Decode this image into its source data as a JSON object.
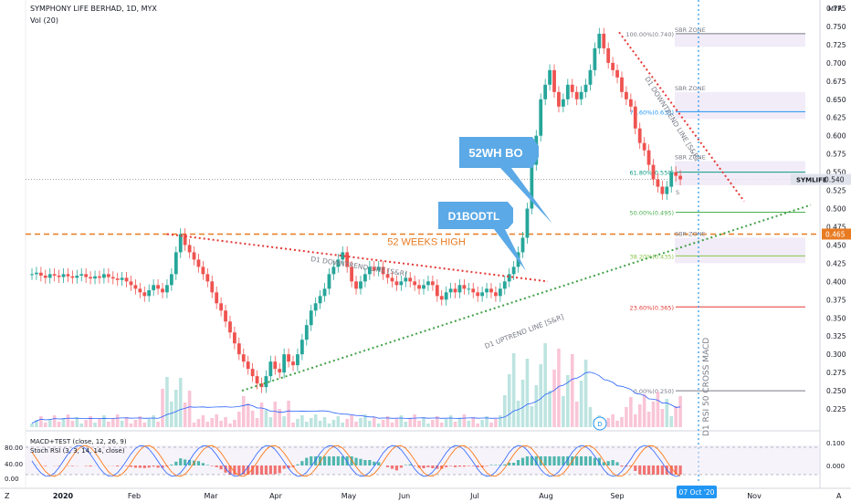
{
  "header": {
    "symbol_line": "SYMPHONY LIFE BERHAD, 1D, MYX",
    "vol_label": "Vol (20)",
    "currency": "MYR",
    "osc1": "MACD+TEST (close, 12, 26, 9)",
    "osc2": "Stoch RSI (3, 3, 14, 14, close)"
  },
  "colors": {
    "up": "#26a69a",
    "down": "#ef5350",
    "callout": "#5ba9e6",
    "orange": "#e87b22",
    "macd": "#2962ff",
    "signal": "#ff6d00"
  },
  "chart_data": {
    "type": "candlestick",
    "ylim": [
      0.2,
      0.78
    ],
    "yticks": [
      "0.225",
      "0.250",
      "0.275",
      "0.300",
      "0.325",
      "0.350",
      "0.375",
      "0.400",
      "0.425",
      "0.450",
      "0.475",
      "0.500",
      "0.525",
      "0.550",
      "0.575",
      "0.600",
      "0.625",
      "0.650",
      "0.675",
      "0.700",
      "0.725",
      "0.750",
      "0.775"
    ],
    "x_labels": [
      "2020",
      "Feb",
      "Mar",
      "Apr",
      "May",
      "Jun",
      "Jul",
      "Aug",
      "Sep",
      "Nov"
    ],
    "x_marker_label": "07 Oct '20",
    "last_price": {
      "label": "SYMLIFE",
      "value": "0.540"
    },
    "high_52w": {
      "label": "52 WEEKS HIGH",
      "value": "0.465"
    },
    "closes": [
      0.41,
      0.412,
      0.408,
      0.405,
      0.41,
      0.408,
      0.406,
      0.41,
      0.407,
      0.405,
      0.408,
      0.41,
      0.406,
      0.404,
      0.407,
      0.405,
      0.41,
      0.406,
      0.404,
      0.402,
      0.405,
      0.4,
      0.395,
      0.39,
      0.385,
      0.38,
      0.388,
      0.395,
      0.39,
      0.385,
      0.395,
      0.41,
      0.44,
      0.465,
      0.45,
      0.44,
      0.43,
      0.42,
      0.41,
      0.4,
      0.385,
      0.37,
      0.36,
      0.345,
      0.33,
      0.315,
      0.3,
      0.29,
      0.28,
      0.27,
      0.26,
      0.255,
      0.27,
      0.29,
      0.28,
      0.275,
      0.3,
      0.29,
      0.285,
      0.3,
      0.32,
      0.34,
      0.36,
      0.37,
      0.38,
      0.39,
      0.41,
      0.42,
      0.43,
      0.44,
      0.42,
      0.4,
      0.39,
      0.4,
      0.41,
      0.42,
      0.415,
      0.42,
      0.41,
      0.405,
      0.4,
      0.395,
      0.4,
      0.405,
      0.4,
      0.395,
      0.39,
      0.395,
      0.4,
      0.395,
      0.38,
      0.375,
      0.385,
      0.39,
      0.385,
      0.395,
      0.39,
      0.39,
      0.385,
      0.38,
      0.385,
      0.39,
      0.385,
      0.38,
      0.39,
      0.4,
      0.41,
      0.42,
      0.44,
      0.46,
      0.5,
      0.56,
      0.6,
      0.65,
      0.67,
      0.69,
      0.66,
      0.64,
      0.65,
      0.67,
      0.66,
      0.65,
      0.66,
      0.67,
      0.69,
      0.72,
      0.74,
      0.72,
      0.7,
      0.69,
      0.68,
      0.66,
      0.65,
      0.64,
      0.61,
      0.59,
      0.58,
      0.56,
      0.54,
      0.53,
      0.52,
      0.53,
      0.55,
      0.545,
      0.54
    ],
    "fib_levels": [
      {
        "label": "100.00%(0.740)",
        "value": 0.74,
        "color": "#787b86"
      },
      {
        "label": "78.60%(0.633)",
        "value": 0.633,
        "color": "#2196f3"
      },
      {
        "label": "61.80%(0.550)",
        "value": 0.55,
        "color": "#089981"
      },
      {
        "label": "50.00%(0.495)",
        "value": 0.495,
        "color": "#4caf50"
      },
      {
        "label": "38.20%(0.435)",
        "value": 0.435,
        "color": "#8bc34a"
      },
      {
        "label": "23.60%(0.365)",
        "value": 0.365,
        "color": "#e53935"
      },
      {
        "label": "0.00%(0.250)",
        "value": 0.25,
        "color": "#787b86"
      }
    ],
    "sbr_zones": [
      {
        "label": "SBR ZONE",
        "top": 0.74,
        "bottom": 0.722
      },
      {
        "label": "SBR ZONE",
        "top": 0.66,
        "bottom": 0.623
      },
      {
        "label": "SBR ZONE",
        "top": 0.565,
        "bottom": 0.532
      },
      {
        "label": "SBR ZONE",
        "top": 0.46,
        "bottom": 0.425
      }
    ],
    "annotations": {
      "callout_52wh": "52WH BO",
      "callout_d1": "D1BODTL",
      "downtrend_main": "D1 DOWNTREND LINE [S&R]",
      "uptrend_main": "D1 UPTREND LINE [S&R]",
      "downtrend_recent": "D1 DOWNTREND LINE [S&R]",
      "rsi_note": "D1 RSI 50 CROSS MACD",
      "d_badge": "D",
      "sbr_partial": "S"
    },
    "oscillator_ticks": [
      "80.00",
      "40.00",
      "0.00"
    ],
    "macd_ticks": [
      "0.100",
      "0.000"
    ]
  },
  "toolbar": {
    "z_label": "Z",
    "a_label": "A"
  }
}
